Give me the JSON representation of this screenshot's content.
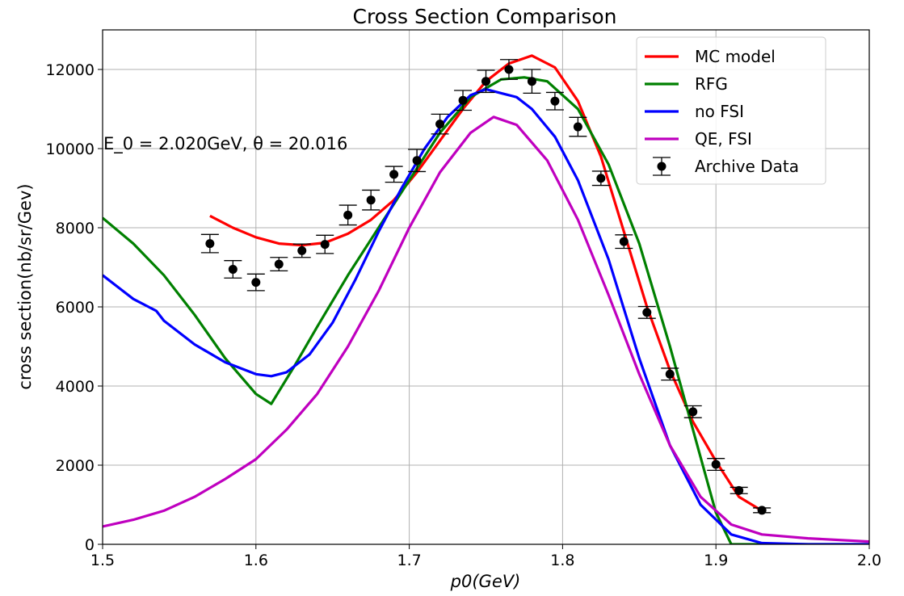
{
  "chart_data": {
    "type": "line",
    "title": "Cross Section Comparison",
    "xlabel": "p0(GeV)",
    "ylabel": "cross section(nb/sr/Gev)",
    "xlim": [
      1.5,
      2.0
    ],
    "ylim": [
      0,
      13000
    ],
    "xticks": [
      "1.5",
      "1.6",
      "1.7",
      "1.8",
      "1.9",
      "2.0"
    ],
    "yticks": [
      "0",
      "2000",
      "4000",
      "6000",
      "8000",
      "10000",
      "12000"
    ],
    "grid": true,
    "legend_position": "top-right",
    "annotation": "E_0 = 2.020GeV,  θ = 20.016",
    "series": [
      {
        "name": "MC model",
        "color": "#ff0000",
        "kind": "line",
        "x": [
          1.57,
          1.585,
          1.6,
          1.615,
          1.63,
          1.645,
          1.66,
          1.675,
          1.69,
          1.705,
          1.72,
          1.735,
          1.75,
          1.765,
          1.78,
          1.795,
          1.81,
          1.825,
          1.84,
          1.855,
          1.87,
          1.885,
          1.9,
          1.915,
          1.93
        ],
        "y": [
          8300,
          8000,
          7760,
          7600,
          7560,
          7620,
          7850,
          8200,
          8700,
          9400,
          10200,
          11000,
          11700,
          12150,
          12350,
          12050,
          11200,
          9800,
          7900,
          6000,
          4400,
          3100,
          2100,
          1200,
          850
        ]
      },
      {
        "name": "RFG",
        "color": "#008000",
        "kind": "line",
        "x": [
          1.5,
          1.52,
          1.54,
          1.56,
          1.58,
          1.6,
          1.61,
          1.625,
          1.64,
          1.66,
          1.68,
          1.7,
          1.72,
          1.74,
          1.76,
          1.775,
          1.79,
          1.81,
          1.83,
          1.85,
          1.87,
          1.89,
          1.9,
          1.91,
          1.93,
          1.96,
          2.0
        ],
        "y": [
          8250,
          7600,
          6800,
          5800,
          4700,
          3800,
          3550,
          4500,
          5500,
          6800,
          8000,
          9200,
          10400,
          11300,
          11750,
          11800,
          11700,
          11000,
          9600,
          7600,
          5000,
          2200,
          800,
          0,
          0,
          0,
          0
        ]
      },
      {
        "name": "no FSI",
        "color": "#0000ff",
        "kind": "line",
        "x": [
          1.5,
          1.51,
          1.52,
          1.53,
          1.535,
          1.54,
          1.56,
          1.58,
          1.6,
          1.61,
          1.62,
          1.635,
          1.65,
          1.665,
          1.68,
          1.695,
          1.71,
          1.725,
          1.74,
          1.75,
          1.76,
          1.77,
          1.78,
          1.795,
          1.81,
          1.83,
          1.85,
          1.87,
          1.89,
          1.91,
          1.93,
          1.96,
          2.0
        ],
        "y": [
          6800,
          6500,
          6200,
          6000,
          5900,
          5650,
          5050,
          4600,
          4300,
          4250,
          4350,
          4800,
          5600,
          6700,
          7900,
          9000,
          10000,
          10800,
          11350,
          11500,
          11400,
          11300,
          11000,
          10300,
          9200,
          7200,
          4700,
          2500,
          1000,
          250,
          30,
          0,
          0
        ]
      },
      {
        "name": "QE, FSI",
        "color": "#bf00bf",
        "kind": "line",
        "x": [
          1.5,
          1.52,
          1.54,
          1.56,
          1.58,
          1.6,
          1.62,
          1.64,
          1.66,
          1.68,
          1.7,
          1.72,
          1.74,
          1.755,
          1.77,
          1.79,
          1.81,
          1.83,
          1.85,
          1.87,
          1.89,
          1.91,
          1.93,
          1.96,
          2.0
        ],
        "y": [
          450,
          620,
          850,
          1200,
          1650,
          2150,
          2900,
          3800,
          5000,
          6400,
          8000,
          9400,
          10400,
          10800,
          10600,
          9700,
          8200,
          6300,
          4300,
          2500,
          1200,
          500,
          250,
          150,
          70
        ]
      },
      {
        "name": "Archive Data",
        "color": "#000000",
        "kind": "errorbar",
        "x": [
          1.57,
          1.585,
          1.6,
          1.615,
          1.63,
          1.645,
          1.66,
          1.675,
          1.69,
          1.705,
          1.72,
          1.735,
          1.75,
          1.765,
          1.78,
          1.795,
          1.81,
          1.825,
          1.84,
          1.855,
          1.87,
          1.885,
          1.9,
          1.915,
          1.93
        ],
        "y": [
          7600,
          6950,
          6620,
          7080,
          7420,
          7580,
          8320,
          8700,
          9350,
          9700,
          10620,
          11220,
          11700,
          12000,
          11700,
          11200,
          10550,
          9250,
          7650,
          5860,
          4300,
          3350,
          2020,
          1360,
          860
        ],
        "err": [
          230,
          220,
          210,
          170,
          170,
          230,
          250,
          250,
          200,
          280,
          250,
          250,
          280,
          250,
          300,
          220,
          240,
          180,
          170,
          150,
          150,
          150,
          150,
          80,
          60
        ]
      }
    ]
  }
}
